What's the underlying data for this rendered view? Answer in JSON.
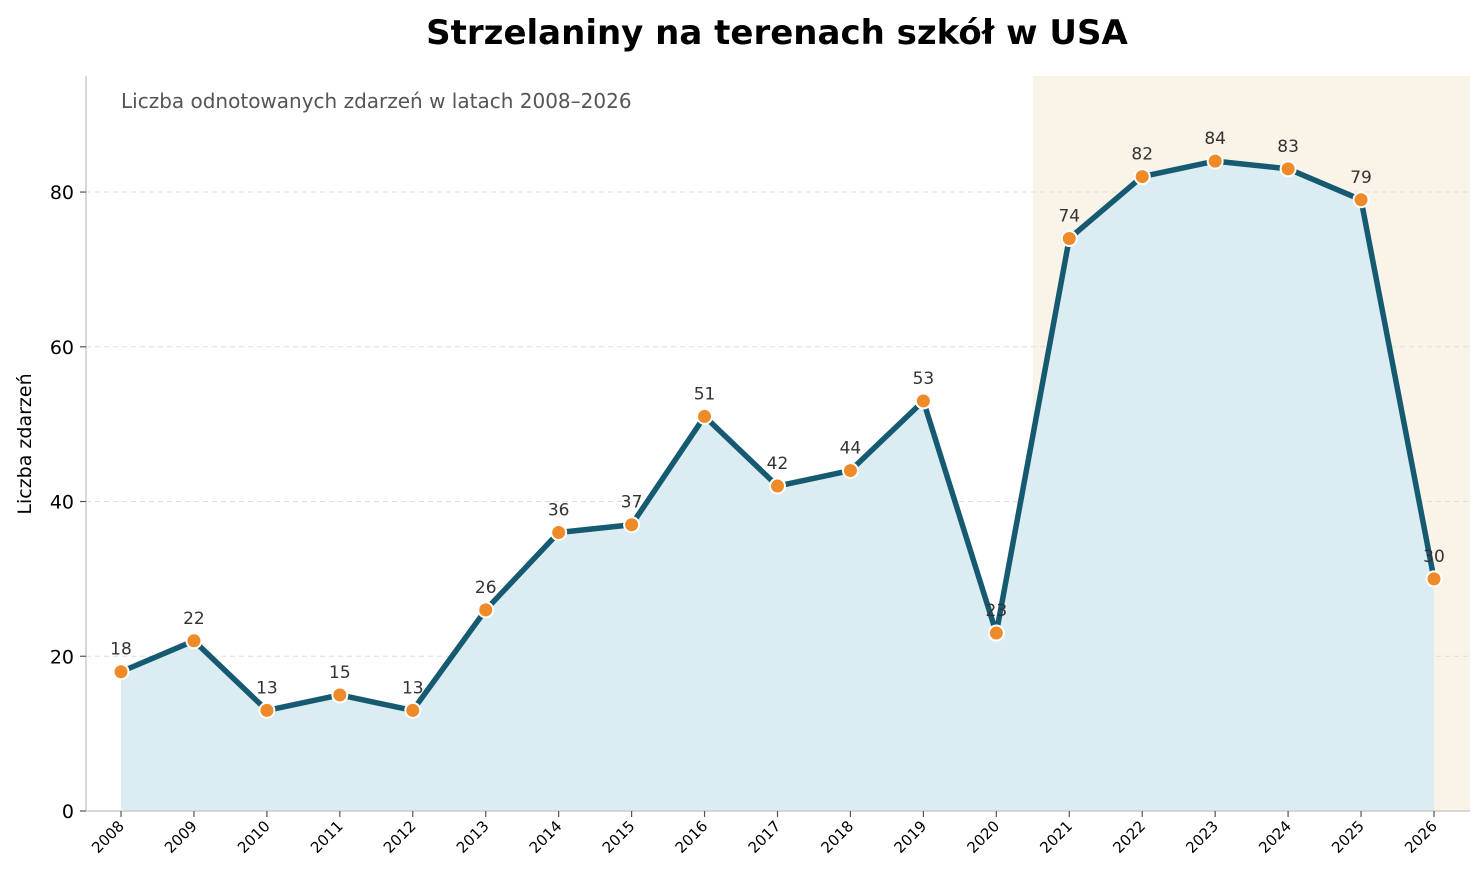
{
  "chart_data": {
    "type": "line",
    "title": "Strzelaniny na terenach szkół w USA",
    "subtitle": "Liczba odnotowanych zdarzeń w latach 2008–2026",
    "xlabel": "",
    "ylabel": "Liczba zdarzeń",
    "categories": [
      "2008",
      "2009",
      "2010",
      "2011",
      "2012",
      "2013",
      "2014",
      "2015",
      "2016",
      "2017",
      "2018",
      "2019",
      "2020",
      "2021",
      "2022",
      "2023",
      "2024",
      "2025",
      "2026"
    ],
    "series": [
      {
        "values": [
          18,
          22,
          13,
          15,
          13,
          26,
          36,
          37,
          51,
          42,
          44,
          53,
          23,
          74,
          82,
          84,
          83,
          79,
          30
        ]
      }
    ],
    "ylim": [
      0,
      95
    ],
    "yticks": [
      0,
      20,
      40,
      60,
      80
    ],
    "highlight_range": [
      "2020.5",
      "2026"
    ],
    "grid": "horizontal dashed",
    "area_fill": true,
    "data_labels": true,
    "colors": {
      "line": "#155a70",
      "area": "#dbecf2",
      "marker": "#ee8a28",
      "marker_edge": "#ffffff",
      "highlight": "#faf3e8",
      "grid": "#dddddd",
      "axis": "#cccccc"
    }
  }
}
